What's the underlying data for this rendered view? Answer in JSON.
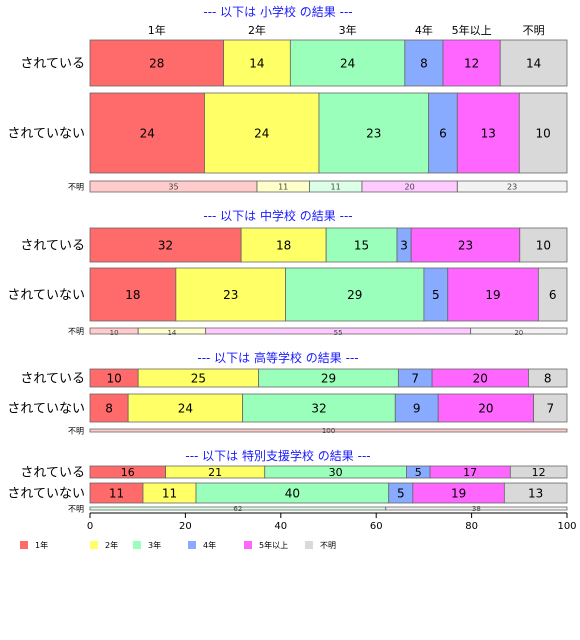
{
  "chart_data": {
    "type": "bar",
    "orientation": "horizontal",
    "stacked": true,
    "normalized": true,
    "xlim": [
      0,
      100
    ],
    "x_ticks": [
      "0",
      "20",
      "40",
      "60",
      "80",
      "100"
    ],
    "categories": [
      "1年",
      "2年",
      "3年",
      "4年",
      "5年以上",
      "不明"
    ],
    "colors": [
      "#ff6b6b",
      "#ffff66",
      "#99ffbb",
      "#88aaff",
      "#ff66ff",
      "#d9d9d9"
    ],
    "legend_position": "bottom-left",
    "grid": false,
    "panels": [
      {
        "title": "--- 以下は 小学校 の結果 ---",
        "rows": [
          {
            "label": "されている",
            "values": [
              28,
              14,
              24,
              8,
              12,
              14
            ]
          },
          {
            "label": "されていない",
            "values": [
              24,
              24,
              23,
              6,
              13,
              10
            ]
          },
          {
            "label": "不明",
            "values": [
              35,
              11,
              11,
              0,
              20,
              23
            ]
          }
        ]
      },
      {
        "title": "--- 以下は 中学校 の結果 ---",
        "rows": [
          {
            "label": "されている",
            "values": [
              32,
              18,
              15,
              3,
              23,
              10
            ]
          },
          {
            "label": "されていない",
            "values": [
              18,
              23,
              29,
              5,
              19,
              6
            ]
          },
          {
            "label": "不明",
            "values": [
              10,
              14,
              0,
              0,
              55,
              20
            ]
          }
        ]
      },
      {
        "title": "--- 以下は 高等学校 の結果 ---",
        "rows": [
          {
            "label": "されている",
            "values": [
              10,
              25,
              29,
              7,
              20,
              8
            ]
          },
          {
            "label": "されていない",
            "values": [
              8,
              24,
              32,
              9,
              20,
              7
            ]
          },
          {
            "label": "不明",
            "values": [
              100,
              0,
              0,
              0,
              0,
              0
            ]
          }
        ]
      },
      {
        "title": "--- 以下は 特別支援学校 の結果 ---",
        "rows": [
          {
            "label": "されている",
            "values": [
              16,
              21,
              30,
              5,
              17,
              12
            ]
          },
          {
            "label": "されていない",
            "values": [
              11,
              11,
              40,
              5,
              19,
              13
            ]
          },
          {
            "label": "不明",
            "values": [
              0,
              0,
              62,
              0,
              0,
              38
            ]
          }
        ]
      }
    ]
  }
}
